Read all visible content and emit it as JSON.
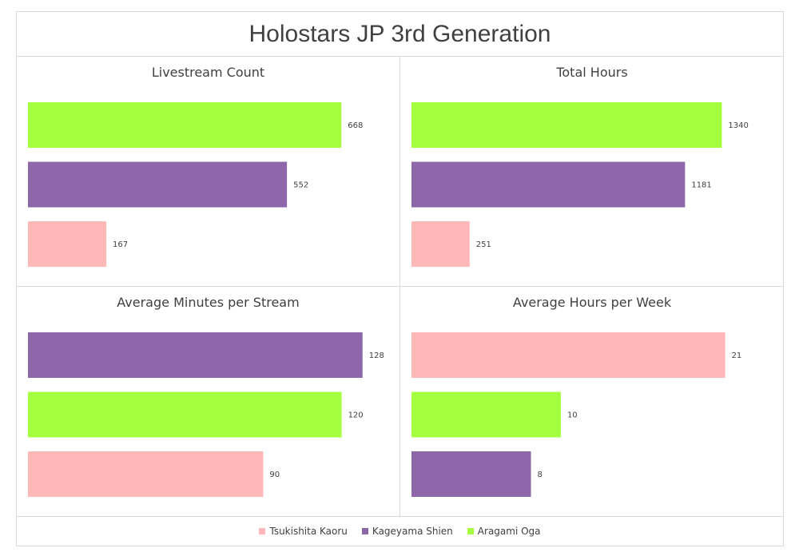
{
  "title": "Holostars JP 3rd Generation",
  "chart_data": [
    {
      "type": "bar",
      "orientation": "horizontal",
      "title": "Livestream Count",
      "categories": [
        "Aragami Oga",
        "Kageyama Shien",
        "Tsukishita Kaoru"
      ],
      "values": [
        668,
        552,
        167
      ],
      "xlim": [
        0,
        780
      ]
    },
    {
      "type": "bar",
      "orientation": "horizontal",
      "title": "Total Hours",
      "categories": [
        "Aragami Oga",
        "Kageyama Shien",
        "Tsukishita Kaoru"
      ],
      "values": [
        1340,
        1181,
        251
      ],
      "xlim": [
        0,
        1580
      ]
    },
    {
      "type": "bar",
      "orientation": "horizontal",
      "title": "Average Minutes per Stream",
      "categories": [
        "Kageyama Shien",
        "Aragami Oga",
        "Tsukishita Kaoru"
      ],
      "values": [
        128,
        120,
        90
      ],
      "xlim": [
        0,
        140
      ]
    },
    {
      "type": "bar",
      "orientation": "horizontal",
      "title": "Average Hours per Week",
      "categories": [
        "Tsukishita Kaoru",
        "Aragami Oga",
        "Kageyama Shien"
      ],
      "values": [
        21,
        10,
        8
      ],
      "xlim": [
        0,
        24.5
      ]
    }
  ],
  "legend": [
    {
      "name": "Tsukishita Kaoru",
      "color": "#ffb8b8"
    },
    {
      "name": "Kageyama Shien",
      "color": "#8e67ab"
    },
    {
      "name": "Aragami Oga",
      "color": "#a4ff3f"
    }
  ],
  "legend_position": "bottom"
}
